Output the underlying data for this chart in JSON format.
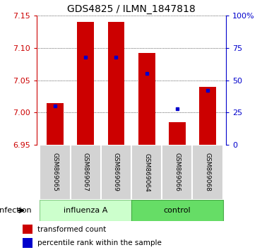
{
  "title": "GDS4825 / ILMN_1847818",
  "samples": [
    "GSM869065",
    "GSM869067",
    "GSM869069",
    "GSM869064",
    "GSM869066",
    "GSM869068"
  ],
  "red_values": [
    7.015,
    7.14,
    7.14,
    7.092,
    6.985,
    7.04
  ],
  "blue_percentiles": [
    30,
    68,
    68,
    55,
    28,
    42
  ],
  "ylim": [
    6.95,
    7.15
  ],
  "yticks_left": [
    6.95,
    7.0,
    7.05,
    7.1,
    7.15
  ],
  "yticks_right": [
    0,
    25,
    50,
    75,
    100
  ],
  "group_influenza_label": "influenza A",
  "group_control_label": "control",
  "group_label": "infection",
  "group_influenza_color": "#ccffcc",
  "group_control_color": "#66dd66",
  "bar_color": "#cc0000",
  "dot_color": "#0000cc",
  "bar_width": 0.55,
  "legend_red_label": "transformed count",
  "legend_blue_label": "percentile rank within the sample",
  "left_color": "#cc0000",
  "right_color": "#0000cc"
}
